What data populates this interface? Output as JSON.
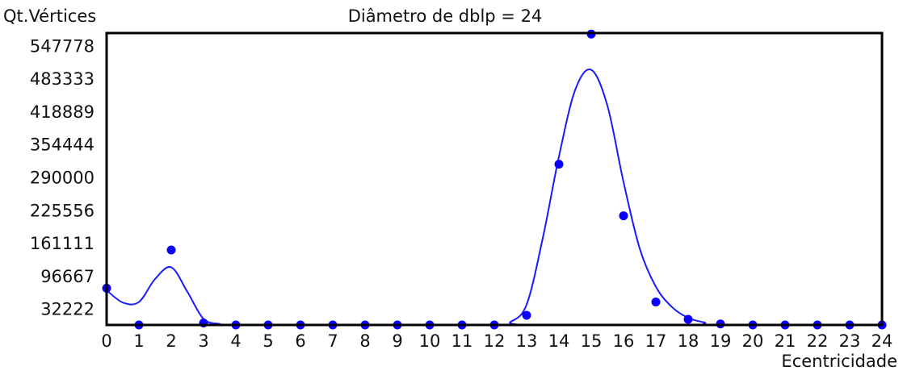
{
  "chart_data": {
    "type": "scatter",
    "title": "Diâmetro de dblp = 24",
    "xlabel": "Ecentricidade",
    "ylabel": "Qt.Vértices",
    "x": [
      0,
      1,
      2,
      3,
      4,
      5,
      6,
      7,
      8,
      9,
      10,
      11,
      12,
      13,
      14,
      15,
      16,
      17,
      18,
      19,
      20,
      21,
      22,
      23,
      24
    ],
    "x_ticks": [
      "0",
      "1",
      "2",
      "3",
      "4",
      "5",
      "6",
      "7",
      "8",
      "9",
      "10",
      "11",
      "12",
      "13",
      "14",
      "15",
      "16",
      "17",
      "18",
      "19",
      "20",
      "21",
      "22",
      "23",
      "24"
    ],
    "y_ticks": [
      "32222",
      "96667",
      "161111",
      "225556",
      "290000",
      "354444",
      "418889",
      "483333",
      "547778"
    ],
    "xlim": [
      0,
      24
    ],
    "ylim": [
      0,
      572000
    ],
    "grid": false,
    "series": [
      {
        "values": [
          72000,
          0,
          147000,
          4000,
          0,
          0,
          0,
          0,
          0,
          0,
          0,
          0,
          0,
          19000,
          315000,
          570000,
          214000,
          45000,
          11000,
          2000,
          0,
          0,
          0,
          0,
          0
        ],
        "marker": "circle",
        "color": "#0a00ff"
      }
    ],
    "smoothed_curve": {
      "color": "#1a1aff",
      "x": [
        0,
        0.5,
        1,
        1.5,
        2,
        2.5,
        3,
        3.5,
        4,
        12,
        12.5,
        13,
        13.5,
        14,
        14.5,
        15,
        15.5,
        16,
        16.5,
        17,
        17.5,
        18,
        18.5,
        19,
        24
      ],
      "y": [
        68000,
        44000,
        45000,
        90000,
        113000,
        65000,
        12000,
        2000,
        0,
        0,
        6000,
        40000,
        170000,
        330000,
        460000,
        500000,
        430000,
        280000,
        150000,
        75000,
        35000,
        14000,
        5000,
        0,
        0
      ]
    }
  }
}
